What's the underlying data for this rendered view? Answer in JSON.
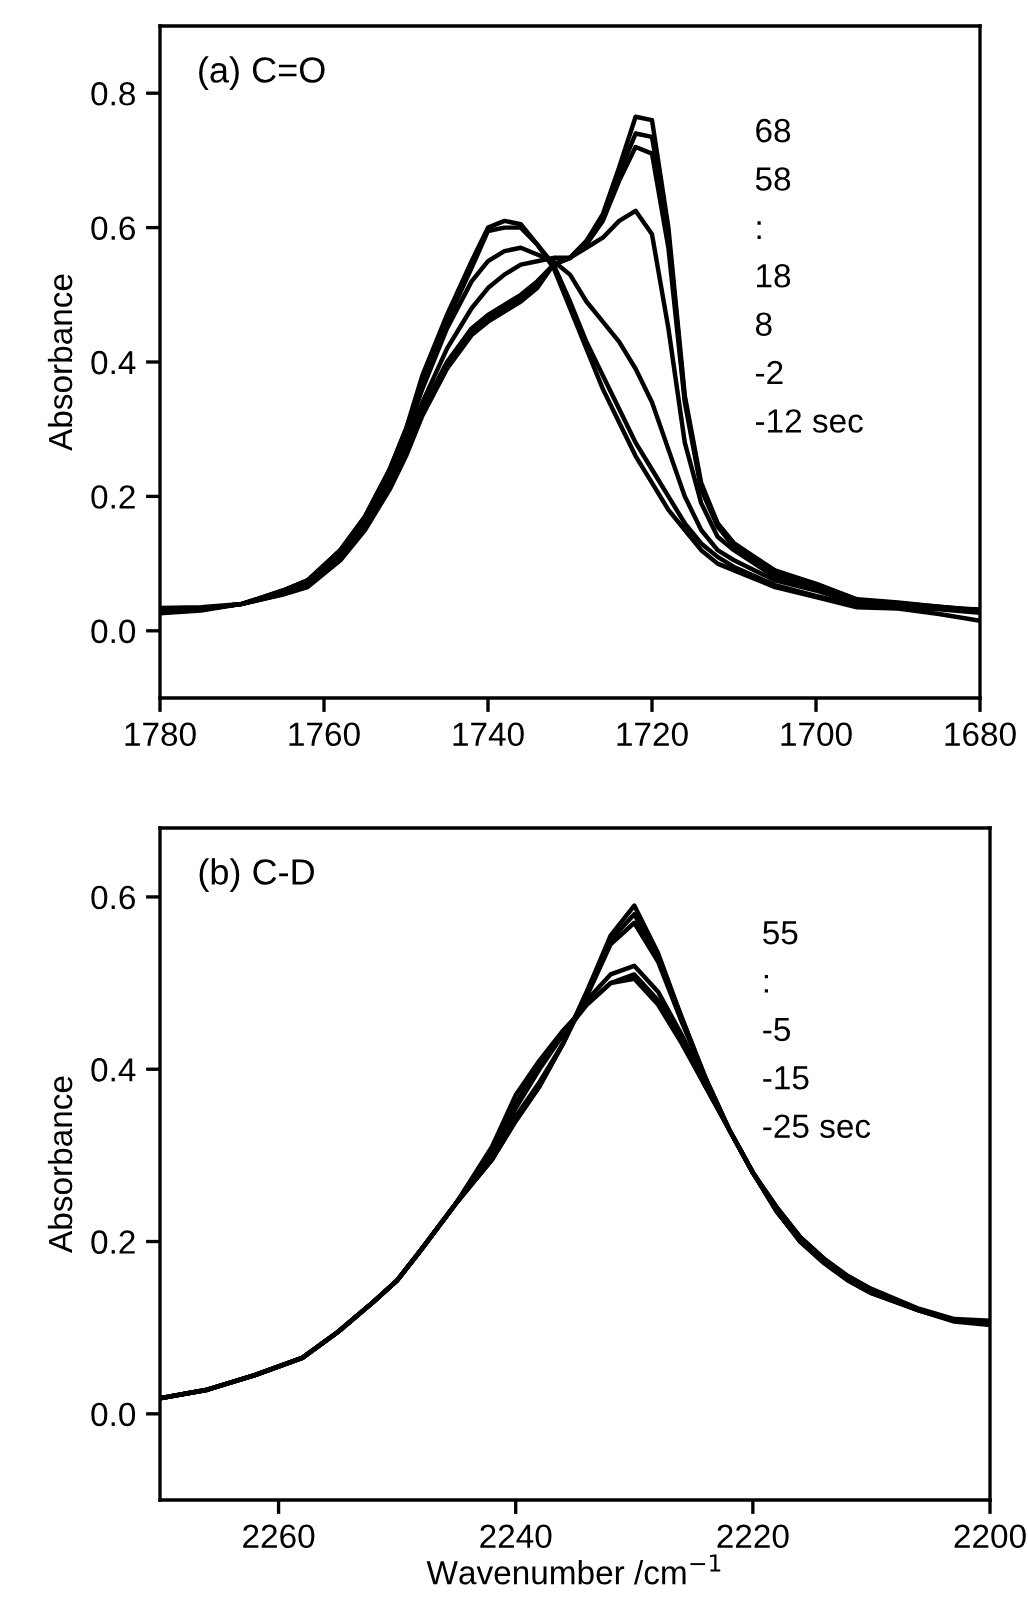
{
  "chart_data": [
    {
      "type": "line",
      "title": "(a) C=O",
      "ylabel": "Absorbance",
      "xlim": [
        1780,
        1680
      ],
      "ylim": [
        -0.1,
        0.9
      ],
      "xticks": [
        1780,
        1760,
        1740,
        1720,
        1700,
        1680
      ],
      "yticks": [
        {
          "value": 0,
          "label": "0.0"
        },
        0.2,
        0.4,
        0.6,
        0.8
      ],
      "line_style": "solid",
      "annotations": [
        "68",
        "58",
        ":",
        "18",
        "8",
        "-2",
        "-12 sec"
      ],
      "x": [
        1780,
        1775,
        1770,
        1765,
        1762,
        1758,
        1755,
        1752,
        1750,
        1748,
        1745,
        1742,
        1740,
        1738,
        1736,
        1734,
        1732,
        1730,
        1728,
        1726,
        1724,
        1722,
        1720,
        1718,
        1716,
        1714,
        1712,
        1710,
        1705,
        1700,
        1695,
        1690,
        1685,
        1680
      ],
      "series": [
        {
          "color": "#000000",
          "values": [
            0.026,
            0.03,
            0.04,
            0.06,
            0.075,
            0.12,
            0.17,
            0.24,
            0.3,
            0.38,
            0.47,
            0.55,
            0.6,
            0.61,
            0.605,
            0.575,
            0.54,
            0.48,
            0.42,
            0.36,
            0.31,
            0.26,
            0.22,
            0.18,
            0.15,
            0.12,
            0.1,
            0.09,
            0.065,
            0.05,
            0.035,
            0.033,
            0.025,
            0.015
          ]
        },
        {
          "color": "#000000",
          "values": [
            0.034,
            0.035,
            0.04,
            0.06,
            0.075,
            0.12,
            0.17,
            0.24,
            0.3,
            0.37,
            0.46,
            0.54,
            0.595,
            0.6,
            0.6,
            0.575,
            0.545,
            0.49,
            0.43,
            0.38,
            0.33,
            0.28,
            0.24,
            0.2,
            0.16,
            0.13,
            0.11,
            0.095,
            0.068,
            0.052,
            0.037,
            0.034,
            0.033,
            0.032
          ]
        },
        {
          "color": "#000000",
          "values": [
            0.03,
            0.032,
            0.04,
            0.058,
            0.072,
            0.12,
            0.165,
            0.235,
            0.29,
            0.36,
            0.45,
            0.52,
            0.55,
            0.565,
            0.57,
            0.56,
            0.55,
            0.53,
            0.49,
            0.46,
            0.43,
            0.39,
            0.34,
            0.27,
            0.2,
            0.15,
            0.12,
            0.105,
            0.075,
            0.06,
            0.04,
            0.036,
            0.032,
            0.027
          ]
        },
        {
          "color": "#000000",
          "values": [
            0.03,
            0.032,
            0.04,
            0.056,
            0.07,
            0.115,
            0.16,
            0.23,
            0.28,
            0.34,
            0.42,
            0.48,
            0.51,
            0.53,
            0.545,
            0.55,
            0.555,
            0.555,
            0.57,
            0.585,
            0.61,
            0.625,
            0.59,
            0.45,
            0.28,
            0.19,
            0.14,
            0.12,
            0.08,
            0.065,
            0.042,
            0.038,
            0.034,
            0.028
          ]
        },
        {
          "color": "#000000",
          "values": [
            0.03,
            0.032,
            0.04,
            0.055,
            0.068,
            0.11,
            0.16,
            0.22,
            0.27,
            0.33,
            0.4,
            0.45,
            0.47,
            0.485,
            0.5,
            0.52,
            0.545,
            0.555,
            0.575,
            0.61,
            0.67,
            0.72,
            0.71,
            0.57,
            0.34,
            0.21,
            0.155,
            0.125,
            0.085,
            0.068,
            0.045,
            0.04,
            0.035,
            0.029
          ]
        },
        {
          "color": "#000000",
          "values": [
            0.03,
            0.032,
            0.04,
            0.055,
            0.066,
            0.11,
            0.155,
            0.215,
            0.265,
            0.325,
            0.395,
            0.445,
            0.465,
            0.48,
            0.495,
            0.515,
            0.545,
            0.555,
            0.58,
            0.615,
            0.68,
            0.74,
            0.735,
            0.59,
            0.345,
            0.215,
            0.16,
            0.13,
            0.088,
            0.07,
            0.046,
            0.041,
            0.036,
            0.03
          ]
        },
        {
          "color": "#000000",
          "values": [
            0.03,
            0.032,
            0.04,
            0.054,
            0.065,
            0.105,
            0.15,
            0.21,
            0.26,
            0.32,
            0.39,
            0.44,
            0.46,
            0.475,
            0.49,
            0.51,
            0.545,
            0.555,
            0.58,
            0.62,
            0.69,
            0.765,
            0.76,
            0.6,
            0.35,
            0.22,
            0.16,
            0.13,
            0.09,
            0.07,
            0.047,
            0.042,
            0.036,
            0.031
          ]
        }
      ]
    },
    {
      "type": "line",
      "title": "(b) C-D",
      "xlabel": "Wavenumber /cm$^{−1}$",
      "ylabel": "Absorbance",
      "xlim": [
        2270,
        2200
      ],
      "ylim": [
        -0.1,
        0.68
      ],
      "xticks": [
        2260,
        2240,
        2220,
        2200
      ],
      "yticks": [
        {
          "value": 0,
          "label": "0.0"
        },
        0.2,
        0.4,
        0.6
      ],
      "line_style": "solid",
      "annotations": [
        "55",
        ":",
        "-5",
        "-15",
        "-25 sec"
      ],
      "x": [
        2270,
        2266,
        2262,
        2258,
        2255,
        2252,
        2250,
        2248,
        2245,
        2242,
        2240,
        2238,
        2236,
        2234,
        2232,
        2230,
        2228,
        2226,
        2224,
        2222,
        2220,
        2218,
        2216,
        2214,
        2212,
        2210,
        2206,
        2203,
        2200
      ],
      "series": [
        {
          "color": "#000000",
          "values": [
            0.018,
            0.028,
            0.045,
            0.065,
            0.095,
            0.13,
            0.155,
            0.19,
            0.245,
            0.31,
            0.37,
            0.41,
            0.445,
            0.475,
            0.5,
            0.505,
            0.475,
            0.43,
            0.38,
            0.33,
            0.28,
            0.24,
            0.205,
            0.18,
            0.16,
            0.145,
            0.122,
            0.11,
            0.108
          ]
        },
        {
          "color": "#000000",
          "values": [
            0.018,
            0.028,
            0.045,
            0.065,
            0.095,
            0.13,
            0.155,
            0.19,
            0.245,
            0.305,
            0.36,
            0.405,
            0.44,
            0.475,
            0.5,
            0.51,
            0.48,
            0.435,
            0.38,
            0.33,
            0.28,
            0.24,
            0.205,
            0.18,
            0.16,
            0.144,
            0.121,
            0.109,
            0.107
          ]
        },
        {
          "color": "#000000",
          "values": [
            0.018,
            0.028,
            0.045,
            0.065,
            0.095,
            0.13,
            0.155,
            0.19,
            0.245,
            0.3,
            0.355,
            0.4,
            0.44,
            0.48,
            0.51,
            0.52,
            0.49,
            0.44,
            0.385,
            0.33,
            0.28,
            0.238,
            0.203,
            0.178,
            0.158,
            0.143,
            0.12,
            0.108,
            0.106
          ]
        },
        {
          "color": "#000000",
          "values": [
            0.018,
            0.028,
            0.045,
            0.065,
            0.095,
            0.13,
            0.155,
            0.19,
            0.245,
            0.295,
            0.345,
            0.385,
            0.43,
            0.485,
            0.545,
            0.57,
            0.525,
            0.455,
            0.39,
            0.33,
            0.28,
            0.236,
            0.2,
            0.176,
            0.156,
            0.141,
            0.12,
            0.108,
            0.105
          ]
        },
        {
          "color": "#000000",
          "values": [
            0.018,
            0.028,
            0.045,
            0.065,
            0.095,
            0.13,
            0.155,
            0.19,
            0.245,
            0.295,
            0.34,
            0.38,
            0.43,
            0.49,
            0.55,
            0.58,
            0.53,
            0.46,
            0.39,
            0.33,
            0.28,
            0.235,
            0.2,
            0.175,
            0.155,
            0.14,
            0.12,
            0.108,
            0.104
          ]
        },
        {
          "color": "#000000",
          "values": [
            0.018,
            0.028,
            0.045,
            0.065,
            0.095,
            0.13,
            0.155,
            0.19,
            0.245,
            0.295,
            0.34,
            0.38,
            0.43,
            0.49,
            0.555,
            0.59,
            0.535,
            0.46,
            0.39,
            0.33,
            0.28,
            0.235,
            0.2,
            0.175,
            0.155,
            0.14,
            0.12,
            0.107,
            0.103
          ]
        }
      ]
    }
  ]
}
